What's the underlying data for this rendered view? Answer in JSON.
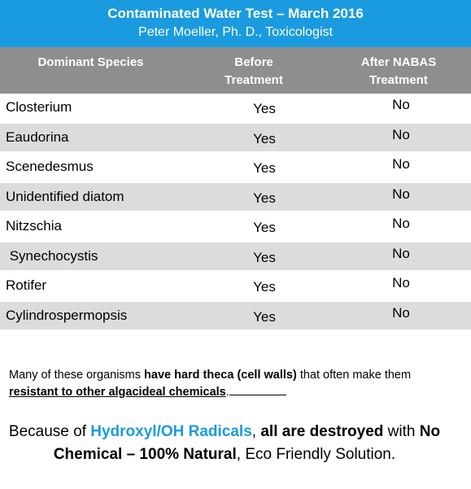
{
  "header": {
    "title": "Contaminated Water Test – March 2016",
    "subtitle": "Peter Moeller, Ph. D., Toxicologist"
  },
  "table": {
    "columns": [
      "Dominant Species",
      "Before Treatment",
      "After NABAS Treatment"
    ],
    "column_lines": {
      "before": [
        "Before",
        "Treatment"
      ],
      "after": [
        "After NABAS",
        "Treatment"
      ]
    },
    "rows": [
      {
        "species": "Closterium",
        "before": "Yes",
        "after": "No"
      },
      {
        "species": "Eaudorina",
        "before": "Yes",
        "after": "No"
      },
      {
        "species": "Scenedesmus",
        "before": "Yes",
        "after": "No"
      },
      {
        "species": "Unidentified diatom",
        "before": "Yes",
        "after": "No"
      },
      {
        "species": "Nitzschia",
        "before": "Yes",
        "after": "No"
      },
      {
        "species": " Synechocystis",
        "before": "Yes",
        "after": "No"
      },
      {
        "species": "Rotifer",
        "before": "Yes",
        "after": "No"
      },
      {
        "species": "Cylindrospermopsis",
        "before": "Yes",
        "after": "No"
      }
    ]
  },
  "note": {
    "part1": "Many of these organisms ",
    "bold1": "have hard theca (cell walls)",
    "part2": " that often make them ",
    "underlined": "resistant to other algacideal chemicals",
    "part3": "."
  },
  "conclusion": {
    "part1": "Because of ",
    "highlight": "Hydroxyl/OH Radicals",
    "comma": ", ",
    "bold1": "all are destroyed",
    "part2": " with ",
    "bold2": "No Chemical – 100% Natural",
    "part3": ", Eco Friendly Solution."
  },
  "colors": {
    "accent_blue": "#1a9bdf",
    "header_gray": "#8e8e8e",
    "row_stripe": "#dcdcdc"
  }
}
